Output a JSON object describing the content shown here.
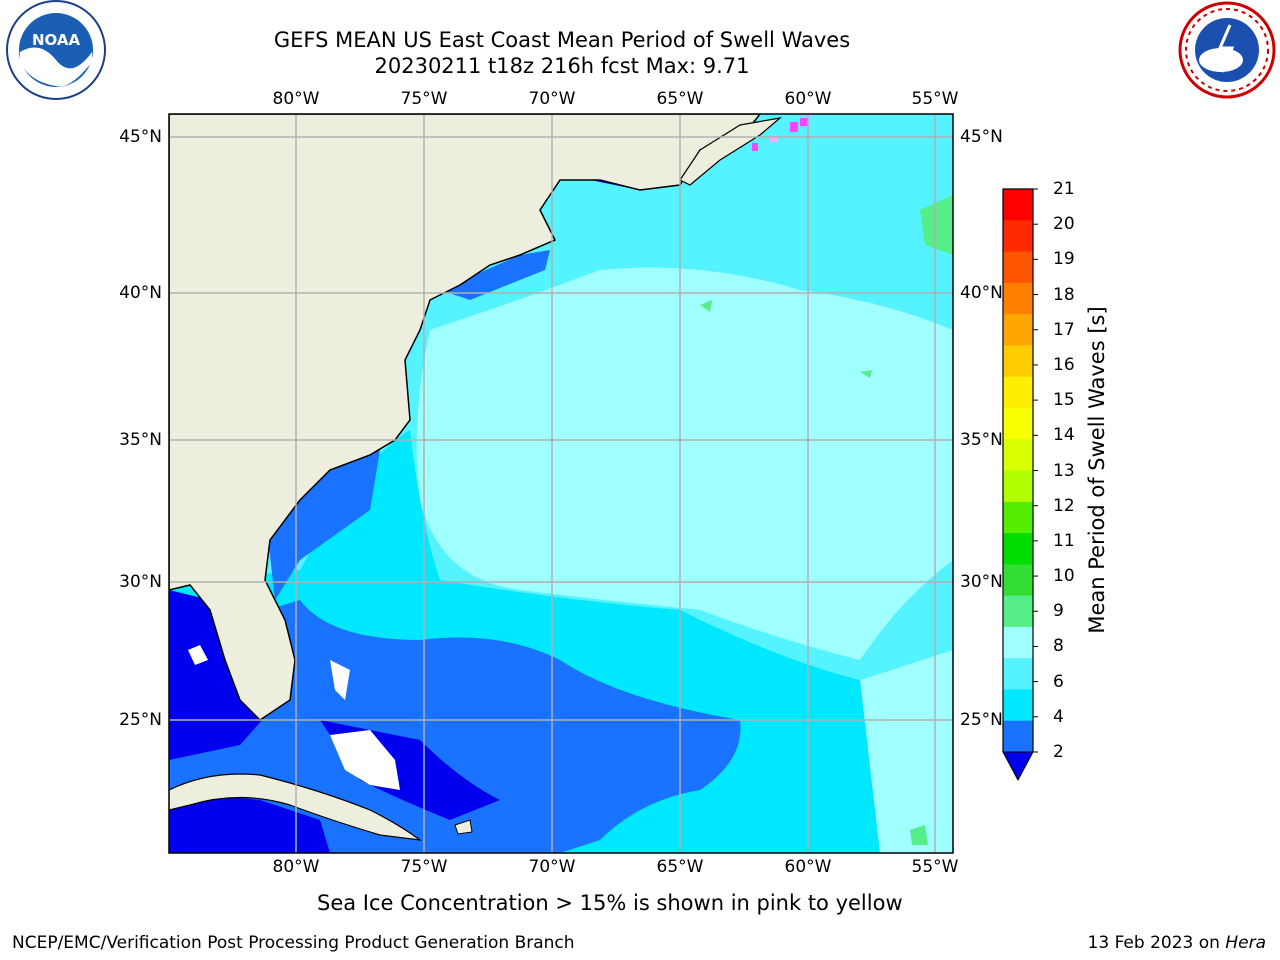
{
  "title": {
    "line1": "GEFS MEAN US East Coast Mean Period of Swell Waves",
    "line2": "20230211 t18z 216h fcst   Max: 9.71"
  },
  "map": {
    "lon_labels_top": [
      "80°W",
      "75°W",
      "70°W",
      "65°W",
      "60°W",
      "55°W"
    ],
    "lon_labels_bottom": [
      "80°W",
      "75°W",
      "70°W",
      "65°W",
      "60°W",
      "55°W"
    ],
    "lat_labels_left": [
      "45°N",
      "40°N",
      "35°N",
      "30°N",
      "25°N"
    ],
    "lat_labels_right": [
      "45°N",
      "40°N",
      "35°N",
      "30°N",
      "25°N"
    ],
    "colors": {
      "land": "#eeeedf",
      "ocean_lt4": "#0000ee",
      "ocean_4_6": "#1a73ff",
      "ocean_6_8": "#00e8ff",
      "ocean_8_9": "#55f3ff",
      "ocean_9_10": "#a0ffff",
      "gridline": "#b0b0b0"
    }
  },
  "colorbar": {
    "title": "Mean Period of Swell Waves [s]",
    "ticks": [
      "21",
      "20",
      "19",
      "18",
      "17",
      "16",
      "15",
      "14",
      "13",
      "12",
      "11",
      "10",
      "9",
      "8",
      "6",
      "4",
      "2"
    ],
    "colors": [
      "#ff0000",
      "#ff2a00",
      "#ff5500",
      "#ff7f00",
      "#ffa500",
      "#ffcc00",
      "#ffee00",
      "#f7ff00",
      "#d9ff00",
      "#b3ff00",
      "#55ee00",
      "#00dd00",
      "#33dd33",
      "#55ee88",
      "#a0ffff",
      "#55f3ff",
      "#00e8ff",
      "#1a73ff"
    ],
    "extend_color": "#0000ee"
  },
  "note": "Sea Ice Concentration > 15% is shown in pink to yellow",
  "footer": {
    "left": "NCEP/EMC/Verification Post Processing Product Generation Branch",
    "right_prefix": "13 Feb 2023 on ",
    "right_machine": "Hera"
  },
  "logos": {
    "left": "NOAA",
    "right": "NATIONAL WEATHER SERVICE"
  }
}
